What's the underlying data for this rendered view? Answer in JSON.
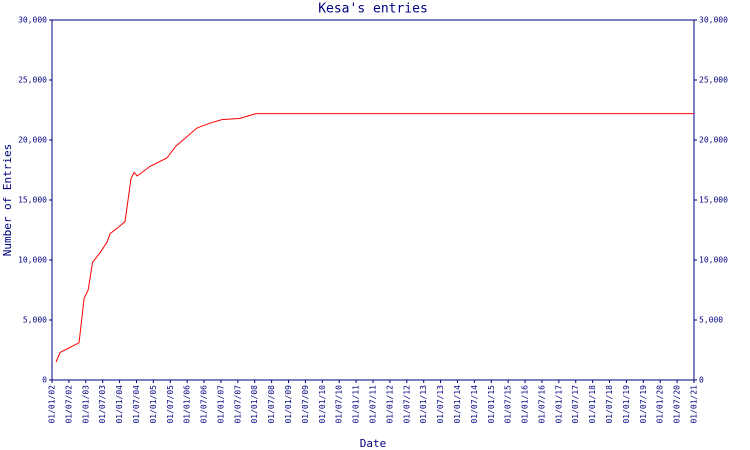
{
  "chart_data": {
    "type": "line",
    "title": "Kesa's entries",
    "xlabel": "Date",
    "ylabel": "Number of Entries",
    "xlim": [
      2002,
      2021
    ],
    "ylim": [
      0,
      30000
    ],
    "yticks": [
      0,
      {
        "value": 5000,
        "label": "5,000"
      },
      {
        "value": 10000,
        "label": "10,000"
      },
      {
        "value": 15000,
        "label": "15,000"
      },
      {
        "value": 20000,
        "label": "20,000"
      },
      {
        "value": 25000,
        "label": "25,000"
      },
      {
        "value": 30000,
        "label": "30,000"
      }
    ],
    "xticks": [
      {
        "value": 2002,
        "label": "01/01/02"
      },
      {
        "value": 2002.5,
        "label": "01/07/02"
      },
      {
        "value": 2003,
        "label": "01/01/03"
      },
      {
        "value": 2003.5,
        "label": "01/07/03"
      },
      {
        "value": 2004,
        "label": "01/01/04"
      },
      {
        "value": 2004.5,
        "label": "01/07/04"
      },
      {
        "value": 2005,
        "label": "01/01/05"
      },
      {
        "value": 2005.5,
        "label": "01/07/05"
      },
      {
        "value": 2006,
        "label": "01/01/06"
      },
      {
        "value": 2006.5,
        "label": "01/07/06"
      },
      {
        "value": 2007,
        "label": "01/01/07"
      },
      {
        "value": 2007.5,
        "label": "01/07/07"
      },
      {
        "value": 2008,
        "label": "01/01/08"
      },
      {
        "value": 2008.5,
        "label": "01/07/08"
      },
      {
        "value": 2009,
        "label": "01/01/09"
      },
      {
        "value": 2009.5,
        "label": "01/07/09"
      },
      {
        "value": 2010,
        "label": "01/01/10"
      },
      {
        "value": 2010.5,
        "label": "01/07/10"
      },
      {
        "value": 2011,
        "label": "01/01/11"
      },
      {
        "value": 2011.5,
        "label": "01/07/11"
      },
      {
        "value": 2012,
        "label": "01/01/12"
      },
      {
        "value": 2012.5,
        "label": "01/07/12"
      },
      {
        "value": 2013,
        "label": "01/01/13"
      },
      {
        "value": 2013.5,
        "label": "01/07/13"
      },
      {
        "value": 2014,
        "label": "01/01/14"
      },
      {
        "value": 2014.5,
        "label": "01/07/14"
      },
      {
        "value": 2015,
        "label": "01/01/15"
      },
      {
        "value": 2015.5,
        "label": "01/07/15"
      },
      {
        "value": 2016,
        "label": "01/01/16"
      },
      {
        "value": 2016.5,
        "label": "01/07/16"
      },
      {
        "value": 2017,
        "label": "01/01/17"
      },
      {
        "value": 2017.5,
        "label": "01/07/17"
      },
      {
        "value": 2018,
        "label": "01/01/18"
      },
      {
        "value": 2018.5,
        "label": "01/07/18"
      },
      {
        "value": 2019,
        "label": "01/01/19"
      },
      {
        "value": 2019.5,
        "label": "01/07/19"
      },
      {
        "value": 2020,
        "label": "01/01/20"
      },
      {
        "value": 2020.5,
        "label": "01/07/20"
      },
      {
        "value": 2021,
        "label": "01/01/21"
      }
    ],
    "x": [
      2002.12,
      2002.24,
      2002.8,
      2002.95,
      2003.07,
      2003.2,
      2003.42,
      2003.63,
      2003.72,
      2003.95,
      2004.16,
      2004.34,
      2004.43,
      2004.52,
      2004.9,
      2005.4,
      2005.67,
      2005.96,
      2006.29,
      2006.67,
      2007.03,
      2007.56,
      2008.04,
      2021
    ],
    "values": [
      1500,
      2300,
      3100,
      6800,
      7500,
      9800,
      10600,
      11500,
      12200,
      12700,
      13200,
      16800,
      17300,
      17000,
      17800,
      18500,
      19500,
      20200,
      21000,
      21400,
      21700,
      21800,
      22200,
      22200
    ],
    "color": "#ff0000",
    "axis_color": "#000080"
  }
}
